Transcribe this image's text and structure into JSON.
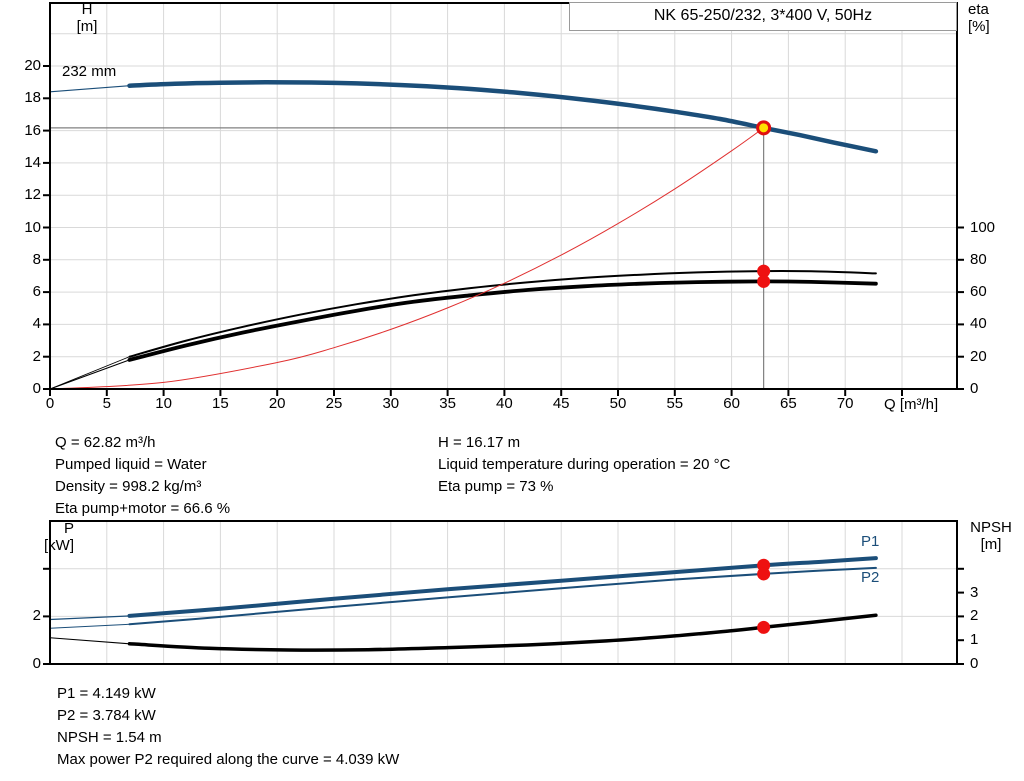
{
  "header": {
    "title": "NK 65-250/232, 3*400 V, 50Hz"
  },
  "colors": {
    "curve_blue": "#1b4e79",
    "curve_black": "#000000",
    "system_red": "#e03030",
    "dot_red": "#ee1111",
    "duty_fill": "#ffe000",
    "duty_ring": "#e01010",
    "grid": "#d9d9d9",
    "crosshair": "#808080",
    "frame": "#000000",
    "box_border": "#9a9a9a"
  },
  "axes": {
    "top_left": {
      "line1": "H",
      "line2": "[m]"
    },
    "top_right": {
      "line1": "eta",
      "line2": "[%]"
    },
    "bot_left": {
      "line1": "P",
      "line2": "[kW]"
    },
    "bot_right": {
      "line1": "NPSH",
      "line2": "[m]"
    }
  },
  "stats": {
    "top_left": {
      "lines": [
        "Q = 62.82 m³/h",
        "Pumped liquid = Water",
        "Density = 998.2 kg/m³",
        "Eta pump+motor = 66.6 %"
      ]
    },
    "top_right": {
      "lines": [
        "H = 16.17 m",
        "Liquid temperature during operation = 20 °C",
        "Eta pump = 73 %"
      ]
    },
    "bottom": {
      "lines": [
        "P1 = 4.149 kW",
        "P2 = 3.784 kW",
        "NPSH = 1.54 m",
        "Max power P2 required along the curve = 4.039 kW"
      ]
    }
  },
  "chart_data": [
    {
      "type": "line",
      "title": "NK 65-250/232, 3*400 V, 50Hz",
      "xlabel": "Q [m³/h]",
      "ylabel_left": "H [m]",
      "ylabel_right": "eta [%]",
      "xlim": [
        0,
        79.8
      ],
      "ylim_left": [
        0,
        23.9
      ],
      "ylim_right": [
        0,
        100
      ],
      "x_tick_values": [
        0,
        5,
        10,
        15,
        20,
        25,
        30,
        35,
        40,
        45,
        50,
        55,
        60,
        65,
        70,
        75
      ],
      "x_tick_labels": [
        "0",
        "5",
        "10",
        "15",
        "20",
        "25",
        "30",
        "35",
        "40",
        "45",
        "50",
        "55",
        "60",
        "65",
        "70",
        ""
      ],
      "y_left_tick_values": [
        0,
        2,
        4,
        6,
        8,
        10,
        12,
        14,
        16,
        18,
        20
      ],
      "y_left_tick_labels": [
        "0",
        "2",
        "4",
        "6",
        "8",
        "10",
        "12",
        "14",
        "16",
        "18",
        "20"
      ],
      "y_right_tick_values": [
        0,
        20,
        40,
        60,
        80,
        100
      ],
      "y_right_tick_labels": [
        "0",
        "20",
        "40",
        "60",
        "80",
        "100"
      ],
      "grid_x": [
        5,
        10,
        15,
        20,
        25,
        30,
        35,
        40,
        45,
        50,
        55,
        60,
        65,
        70,
        75
      ],
      "grid_y": [
        2,
        4,
        6,
        8,
        10,
        12,
        14,
        16,
        18,
        20,
        22
      ],
      "crosshair": {
        "q": 62.82,
        "value": 16.17
      },
      "series": [
        {
          "name": "head-curve-232mm",
          "label": "232 mm",
          "axis": "left",
          "width": 4.5,
          "thin_width": 1.2,
          "thin_before": 7,
          "color_key": "curve_blue",
          "points": [
            [
              0,
              18.4
            ],
            [
              4,
              18.62
            ],
            [
              7,
              18.78
            ],
            [
              11,
              18.9
            ],
            [
              15,
              18.96
            ],
            [
              19,
              18.99
            ],
            [
              23,
              18.98
            ],
            [
              27,
              18.92
            ],
            [
              31,
              18.82
            ],
            [
              35,
              18.67
            ],
            [
              39,
              18.47
            ],
            [
              43,
              18.22
            ],
            [
              47,
              17.92
            ],
            [
              51,
              17.57
            ],
            [
              55,
              17.17
            ],
            [
              59,
              16.72
            ],
            [
              62.82,
              16.17
            ],
            [
              66,
              15.72
            ],
            [
              69,
              15.26
            ],
            [
              72.7,
              14.72
            ]
          ]
        },
        {
          "name": "eta-pump-curve",
          "label": "",
          "axis": "right",
          "width": 2,
          "thin_width": 0.9,
          "thin_before": 7,
          "color_key": "curve_black",
          "points": [
            [
              0,
              0
            ],
            [
              7,
              20
            ],
            [
              12,
              30
            ],
            [
              17,
              38.5
            ],
            [
              22,
              46
            ],
            [
              27,
              52.5
            ],
            [
              32,
              58
            ],
            [
              37,
              62.5
            ],
            [
              42,
              66
            ],
            [
              47,
              68.8
            ],
            [
              52,
              70.8
            ],
            [
              57,
              72.2
            ],
            [
              62.82,
              73
            ],
            [
              67,
              72.9
            ],
            [
              72.7,
              71.6
            ]
          ]
        },
        {
          "name": "eta-pump-motor-curve",
          "label": "",
          "axis": "right",
          "width": 3.8,
          "thin_width": 1.1,
          "thin_before": 7,
          "color_key": "curve_black",
          "points": [
            [
              0,
              0
            ],
            [
              7,
              18
            ],
            [
              12,
              27
            ],
            [
              17,
              35
            ],
            [
              22,
              42
            ],
            [
              27,
              48.5
            ],
            [
              32,
              54
            ],
            [
              37,
              58
            ],
            [
              42,
              61.3
            ],
            [
              47,
              63.6
            ],
            [
              52,
              65.2
            ],
            [
              57,
              66.2
            ],
            [
              62.82,
              66.6
            ],
            [
              67,
              66.3
            ],
            [
              72.7,
              65.2
            ]
          ]
        },
        {
          "name": "system-curve",
          "label": "",
          "axis": "left",
          "width": 1,
          "thin_width": 1,
          "thin_before": 0,
          "color_key": "system_red",
          "points": [
            [
              0,
              0
            ],
            [
              10,
              0.41
            ],
            [
              20,
              1.64
            ],
            [
              25,
              2.56
            ],
            [
              30,
              3.69
            ],
            [
              35,
              5.02
            ],
            [
              40,
              6.55
            ],
            [
              45,
              8.29
            ],
            [
              50,
              10.24
            ],
            [
              55,
              12.39
            ],
            [
              60,
              14.75
            ],
            [
              62.82,
              16.17
            ]
          ]
        }
      ],
      "markers": [
        {
          "name": "duty-point",
          "style": "duty",
          "q": 62.82,
          "value": 16.17,
          "axis": "left"
        },
        {
          "name": "eta-pump-point",
          "style": "dot",
          "q": 62.82,
          "value": 73,
          "axis": "right"
        },
        {
          "name": "eta-pump-motor-point",
          "style": "dot",
          "q": 62.82,
          "value": 66.6,
          "axis": "right"
        }
      ]
    },
    {
      "type": "line",
      "title": "",
      "xlabel": "",
      "ylabel_left": "P [kW]",
      "ylabel_right": "NPSH [m]",
      "xlim": [
        0,
        79.8
      ],
      "ylim_left": [
        0,
        6
      ],
      "ylim_right": [
        0,
        6
      ],
      "x_tick_values": [],
      "x_tick_labels": [],
      "y_left_tick_values": [
        0,
        2,
        4
      ],
      "y_left_tick_labels": [
        "0",
        "2",
        ""
      ],
      "y_right_tick_values": [
        0,
        1,
        2,
        3,
        4
      ],
      "y_right_tick_labels": [
        "0",
        "1",
        "2",
        "3",
        ""
      ],
      "grid_x": [
        5,
        10,
        15,
        20,
        25,
        30,
        35,
        40,
        45,
        50,
        55,
        60,
        65,
        70,
        75
      ],
      "grid_y": [
        2,
        4
      ],
      "crosshair": null,
      "series": [
        {
          "name": "p1-curve",
          "label": "P1",
          "axis": "left",
          "width": 4,
          "thin_width": 1.2,
          "thin_before": 7,
          "color_key": "curve_blue",
          "points": [
            [
              0,
              1.87
            ],
            [
              7,
              2.02
            ],
            [
              15,
              2.32
            ],
            [
              25,
              2.74
            ],
            [
              35,
              3.14
            ],
            [
              45,
              3.5
            ],
            [
              55,
              3.86
            ],
            [
              62.82,
              4.149
            ],
            [
              68,
              4.3
            ],
            [
              72.7,
              4.45
            ]
          ]
        },
        {
          "name": "p2-curve",
          "label": "P2",
          "axis": "left",
          "width": 2,
          "thin_width": 1,
          "thin_before": 7,
          "color_key": "curve_blue",
          "points": [
            [
              0,
              1.5
            ],
            [
              7,
              1.67
            ],
            [
              15,
              1.98
            ],
            [
              25,
              2.4
            ],
            [
              35,
              2.8
            ],
            [
              45,
              3.18
            ],
            [
              55,
              3.55
            ],
            [
              62.82,
              3.784
            ],
            [
              68,
              3.93
            ],
            [
              72.7,
              4.039
            ]
          ]
        },
        {
          "name": "npsh-curve",
          "label": "",
          "axis": "right",
          "width": 3.5,
          "thin_width": 1,
          "thin_before": 7,
          "color_key": "curve_black",
          "points": [
            [
              0,
              1.1
            ],
            [
              7,
              0.85
            ],
            [
              14,
              0.66
            ],
            [
              21,
              0.59
            ],
            [
              28,
              0.6
            ],
            [
              35,
              0.69
            ],
            [
              42,
              0.8
            ],
            [
              49,
              0.97
            ],
            [
              55,
              1.18
            ],
            [
              60,
              1.4
            ],
            [
              62.82,
              1.54
            ],
            [
              67,
              1.75
            ],
            [
              72.7,
              2.05
            ]
          ]
        }
      ],
      "markers": [
        {
          "name": "p1-point",
          "style": "dot",
          "q": 62.82,
          "value": 4.149,
          "axis": "left"
        },
        {
          "name": "p2-point",
          "style": "dot",
          "q": 62.82,
          "value": 3.784,
          "axis": "left"
        },
        {
          "name": "npsh-point",
          "style": "dot",
          "q": 62.82,
          "value": 1.54,
          "axis": "right"
        }
      ],
      "operating_values": {
        "P1_kW": 4.149,
        "P2_kW": 3.784,
        "NPSH_m": 1.54,
        "max_P2_kW": 4.039
      }
    }
  ]
}
